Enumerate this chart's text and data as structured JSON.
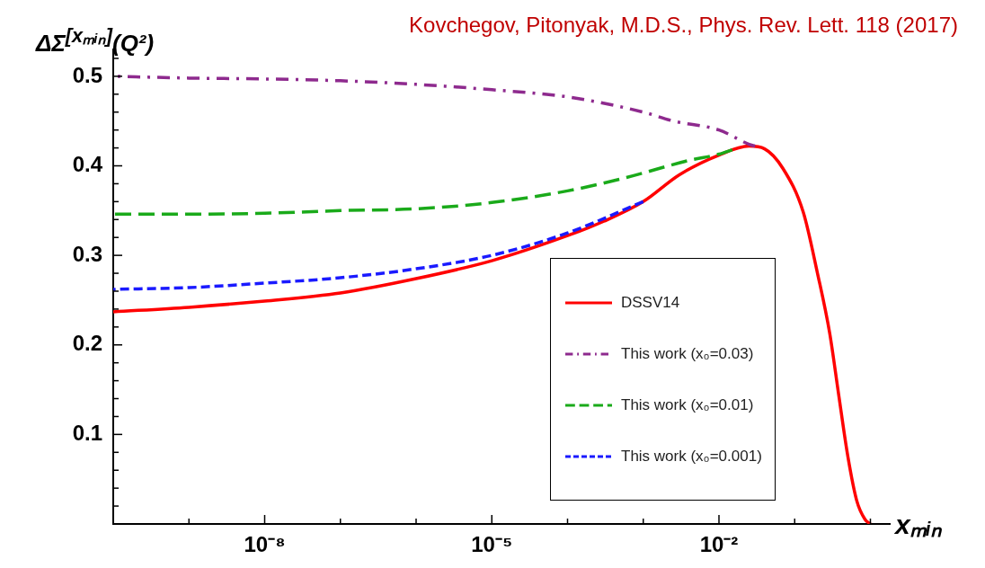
{
  "chart_data": {
    "type": "line",
    "ylabel": "ΔΣ$^{[xₘᵢₙ]}$(Q²)",
    "xlabel": "xₘᵢₙ",
    "annotations": [
      "Kovchegov, Pitonyak, M.D.S., Phys. Rev. Lett. 118 (2017)"
    ],
    "log": "x",
    "xlim": [
      1e-10,
      1.8
    ],
    "ylim": [
      0,
      0.53
    ],
    "xticks": [
      {
        "value": 1e-10,
        "label": null
      },
      {
        "value": 1e-09,
        "label": null
      },
      {
        "value": 1e-08,
        "label": "10⁻⁸"
      },
      {
        "value": 1e-07,
        "label": null
      },
      {
        "value": 1e-06,
        "label": null
      },
      {
        "value": 1e-05,
        "label": "10⁻⁵"
      },
      {
        "value": 0.0001,
        "label": null
      },
      {
        "value": 0.001,
        "label": null
      },
      {
        "value": 0.01,
        "label": "10⁻²"
      },
      {
        "value": 0.1,
        "label": null
      },
      {
        "value": 1,
        "label": null
      }
    ],
    "yticks": [
      {
        "value": 0.02,
        "label": null
      },
      {
        "value": 0.04,
        "label": null
      },
      {
        "value": 0.06,
        "label": null
      },
      {
        "value": 0.08,
        "label": null
      },
      0.1,
      {
        "value": 0.12,
        "label": null
      },
      {
        "value": 0.14,
        "label": null
      },
      {
        "value": 0.16,
        "label": null
      },
      {
        "value": 0.18,
        "label": null
      },
      0.2,
      {
        "value": 0.22,
        "label": null
      },
      {
        "value": 0.24,
        "label": null
      },
      {
        "value": 0.26,
        "label": null
      },
      {
        "value": 0.28,
        "label": null
      },
      0.3,
      {
        "value": 0.32,
        "label": null
      },
      {
        "value": 0.34,
        "label": null
      },
      {
        "value": 0.36,
        "label": null
      },
      {
        "value": 0.38,
        "label": null
      },
      0.4,
      {
        "value": 0.42,
        "label": null
      },
      {
        "value": 0.44,
        "label": null
      },
      {
        "value": 0.46,
        "label": null
      },
      {
        "value": 0.48,
        "label": null
      },
      0.5,
      {
        "value": 0.52,
        "label": null
      }
    ],
    "grid": false,
    "legend": "bottom right",
    "marker": "none",
    "series": [
      {
        "name": "DSSV14",
        "color": "#ff0000",
        "line_style": "solid",
        "x": [
          1e-10,
          1e-09,
          1e-08,
          1e-07,
          1e-06,
          1e-05,
          0.0001,
          0.0003,
          0.001,
          0.003,
          0.01,
          0.025,
          0.04,
          0.07,
          0.13,
          0.2,
          0.29,
          0.38,
          0.5,
          0.66,
          0.85,
          1
        ],
        "values": [
          0.237,
          0.242,
          0.249,
          0.258,
          0.274,
          0.294,
          0.322,
          0.338,
          0.36,
          0.39,
          0.412,
          0.422,
          0.419,
          0.397,
          0.348,
          0.28,
          0.213,
          0.145,
          0.077,
          0.026,
          0.005,
          0
        ]
      },
      {
        "name": "This work (x₀=0.03)",
        "color": "#8e2a8e",
        "line_style": "dashdot",
        "x": [
          1e-10,
          1e-09,
          1e-08,
          1e-07,
          1e-06,
          1e-05,
          0.0001,
          0.001,
          0.0025,
          0.01,
          0.025,
          0.03
        ],
        "values": [
          0.5,
          0.498,
          0.497,
          0.495,
          0.491,
          0.485,
          0.477,
          0.46,
          0.45,
          0.44,
          0.424,
          0.422
        ]
      },
      {
        "name": "This work (x₀=0.01)",
        "color": "#1aaa1a",
        "line_style": "dashed",
        "x": [
          1e-10,
          1e-09,
          1e-08,
          1e-07,
          1e-06,
          1e-05,
          0.0001,
          0.0006,
          0.004,
          0.01,
          0.015
        ],
        "values": [
          0.346,
          0.346,
          0.347,
          0.35,
          0.352,
          0.359,
          0.372,
          0.387,
          0.406,
          0.413,
          0.418
        ]
      },
      {
        "name": "This work (x₀=0.001)",
        "color": "#1a1aff",
        "line_style": "dotted",
        "x": [
          1e-10,
          1e-09,
          1e-08,
          1e-07,
          1e-06,
          1e-05,
          0.0001,
          0.001
        ],
        "values": [
          0.262,
          0.264,
          0.269,
          0.275,
          0.285,
          0.3,
          0.325,
          0.36
        ]
      }
    ]
  }
}
